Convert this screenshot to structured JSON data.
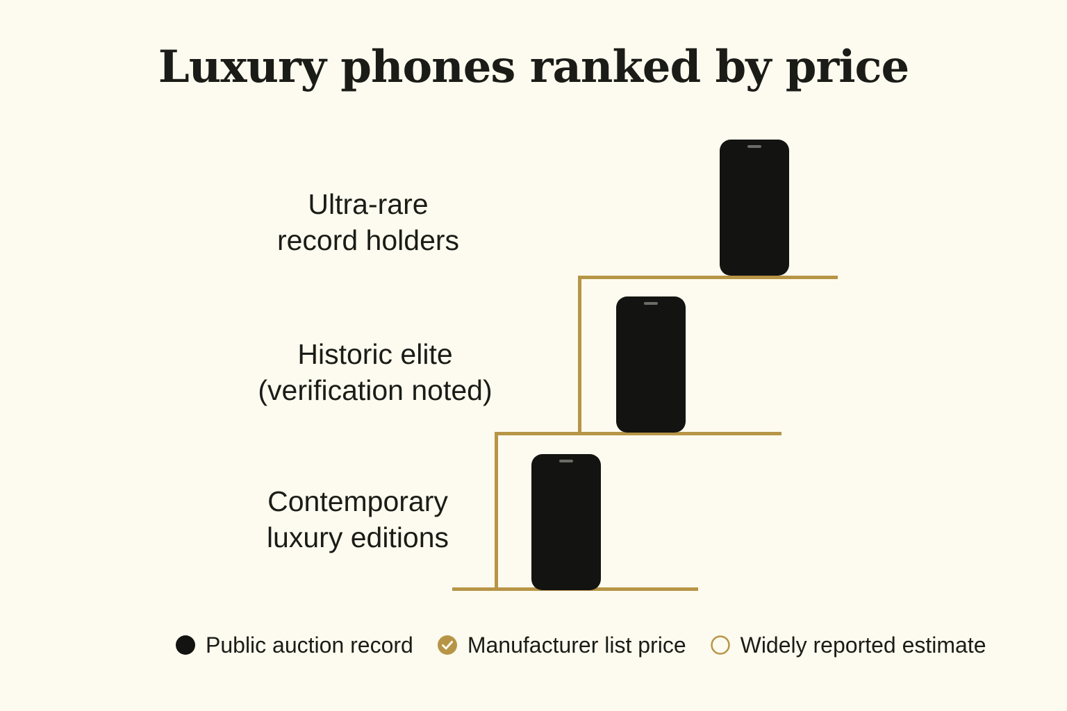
{
  "title": "Luxury phones ranked by price",
  "tiers": [
    {
      "line1": "Ultra-rare",
      "line2": "record holders"
    },
    {
      "line1": "Historic elite",
      "line2": "(verification noted)"
    },
    {
      "line1": "Contemporary",
      "line2": "luxury editions"
    }
  ],
  "legend": [
    {
      "label": "Public auction record",
      "marker": "filled-circle-icon"
    },
    {
      "label": "Manufacturer list price",
      "marker": "gold-check-circle-icon"
    },
    {
      "label": "Widely reported estimate",
      "marker": "hollow-circle-icon"
    }
  ],
  "colors": {
    "background": "#fdfbef",
    "text": "#1b1c17",
    "gold": "#b79547",
    "phone": "#131411"
  }
}
